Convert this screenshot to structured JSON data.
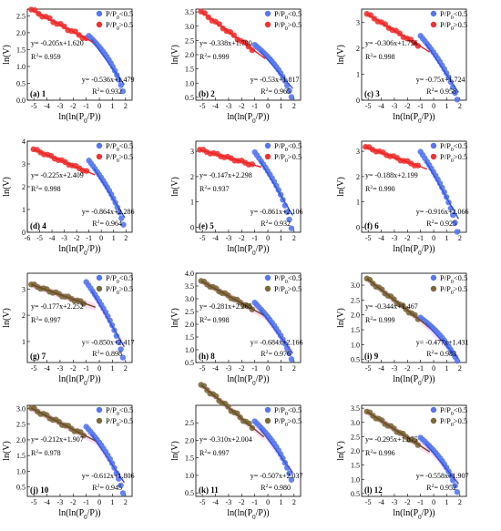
{
  "figure": {
    "type": "scatter"
  },
  "colors": {
    "low": "#5577ee",
    "high_red": "#ee3333",
    "high_brown": "#7a6a3a",
    "fit_red": "#ee2222",
    "fit_blue": "#3355dd",
    "fit_brown": "#6b4a2a",
    "band_pink": "#ff99dd",
    "band_green": "#33bb55"
  },
  "chart_data": [
    {
      "type": "scatter",
      "label": "(a) 1",
      "xlabel": "ln(ln(P0/P))",
      "ylabel": "ln(V)",
      "xlim": [
        -5.5,
        2.5
      ],
      "ylim": [
        0,
        2.7
      ],
      "xticks": [
        -5,
        -4,
        -3,
        -2,
        -1,
        0,
        1,
        2
      ],
      "yticks": [
        0.0,
        0.5,
        1.0,
        1.5,
        2.0,
        2.5
      ],
      "ytick_labels": [
        "0.0",
        "0.5",
        "1.0",
        "1.5",
        "2.0",
        "2.5"
      ],
      "legend": [
        "P/P0<0.5",
        "P/P0>0.5"
      ],
      "high_color": "high_red",
      "fit_high": {
        "equation": "y= -0.205x+1.620",
        "r2": "0.959",
        "slope": -0.205,
        "intercept": 1.62,
        "x_range": [
          -5.2,
          -0.3
        ]
      },
      "fit_low": {
        "equation": "y= -0.536x+1.479",
        "r2": "0.932",
        "slope": -0.536,
        "intercept": 1.479,
        "x_range": [
          -0.6,
          1.9
        ]
      },
      "high_points": {
        "x_range": [
          -5.2,
          -1.0
        ],
        "n": 16
      },
      "low_points": {
        "x_range": [
          -0.8,
          1.8
        ],
        "n": 18,
        "dip": 0.25
      }
    },
    {
      "type": "scatter",
      "label": "(b) 2",
      "xlabel": "ln(ln(P0/P))",
      "ylabel": "ln(V)",
      "xlim": [
        -5.5,
        2.5
      ],
      "ylim": [
        0.4,
        3.6
      ],
      "xticks": [
        -5,
        -4,
        -3,
        -2,
        -1,
        0,
        1,
        2
      ],
      "yticks": [
        0.5,
        1.0,
        1.5,
        2.0,
        2.5,
        3.0,
        3.5
      ],
      "ytick_labels": [
        "0.5",
        "1.0",
        "1.5",
        "2.0",
        "2.5",
        "3.0",
        "3.5"
      ],
      "legend": [
        "P/P0<0.5",
        "P/P0>0.5"
      ],
      "high_color": "high_red",
      "fit_high": {
        "equation": "y= -0.338x+1.790",
        "r2": "0.999",
        "slope": -0.338,
        "intercept": 1.79,
        "x_range": [
          -5.1,
          -0.2
        ]
      },
      "fit_low": {
        "equation": "y= -0.53x+1.817",
        "r2": "0.965",
        "slope": -0.53,
        "intercept": 1.817,
        "x_range": [
          -0.6,
          1.9
        ]
      },
      "high_points": {
        "x_range": [
          -5.1,
          -1.2
        ],
        "n": 15
      },
      "low_points": {
        "x_range": [
          -1.0,
          1.8
        ],
        "n": 18,
        "dip": 0.35
      }
    },
    {
      "type": "scatter",
      "label": "(c) 3",
      "xlabel": "ln(ln(P0/P))",
      "ylabel": "ln(V)",
      "xlim": [
        -5.5,
        2.5
      ],
      "ylim": [
        0,
        3.5
      ],
      "xticks": [
        -5,
        -4,
        -3,
        -2,
        -1,
        0,
        1,
        2
      ],
      "yticks": [
        0,
        1,
        2,
        3
      ],
      "ytick_labels": [
        "0",
        "1",
        "2",
        "3"
      ],
      "legend": [
        "P/P0<0.5",
        "P/P0>0.5"
      ],
      "high_color": "high_red",
      "fit_high": {
        "equation": "y= -0.306x+1.756",
        "r2": "0.998",
        "slope": -0.306,
        "intercept": 1.756,
        "x_range": [
          -5.1,
          -0.3
        ]
      },
      "fit_low": {
        "equation": "y= -0.75x+1.724",
        "r2": "0.958",
        "slope": -0.75,
        "intercept": 1.724,
        "x_range": [
          -0.6,
          1.9
        ]
      },
      "high_points": {
        "x_range": [
          -5.1,
          -1.2
        ],
        "n": 15
      },
      "low_points": {
        "x_range": [
          -1.0,
          1.8
        ],
        "n": 18,
        "dip": 0.35
      }
    },
    {
      "type": "scatter",
      "label": "(d) 4",
      "xlabel": "ln(ln(P0/P))",
      "ylabel": "ln(V)",
      "xlim": [
        -6,
        2.5
      ],
      "ylim": [
        0,
        4
      ],
      "xticks": [
        -6,
        -5,
        -4,
        -3,
        -2,
        -1,
        0,
        1,
        2
      ],
      "yticks": [
        0,
        1,
        2,
        3,
        4
      ],
      "ytick_labels": [
        "0",
        "1",
        "2",
        "3",
        "4"
      ],
      "legend": [
        "P/P0<0.5",
        "P/P0>0.5"
      ],
      "high_color": "high_red",
      "fit_high": {
        "equation": "y= -0.225x+2.409",
        "r2": "0.998",
        "slope": -0.225,
        "intercept": 2.409,
        "x_range": [
          -5.5,
          -0.5
        ]
      },
      "fit_low": {
        "equation": "y= -0.864x+2.286",
        "r2": "0.964",
        "slope": -0.864,
        "intercept": 2.286,
        "x_range": [
          -0.6,
          1.9
        ]
      },
      "high_points": {
        "x_range": [
          -5.5,
          -1.2
        ],
        "n": 16
      },
      "low_points": {
        "x_range": [
          -1.0,
          1.8
        ],
        "n": 18,
        "dip": 0.4
      }
    },
    {
      "type": "scatter",
      "label": "(e) 5",
      "xlabel": "ln(ln(P0/P))",
      "ylabel": "ln(V)",
      "xlim": [
        -5.5,
        2.5
      ],
      "ylim": [
        -0.2,
        3.4
      ],
      "xticks": [
        -5,
        -4,
        -3,
        -2,
        -1,
        0,
        1,
        2
      ],
      "yticks": [
        0,
        1,
        2,
        3
      ],
      "ytick_labels": [
        "0",
        "1",
        "2",
        "3"
      ],
      "legend": [
        "P/P0<0.5",
        "P/P0>0.5"
      ],
      "high_color": "high_red",
      "fit_high": {
        "equation": "y= -0.147x+2.298",
        "r2": "0.937",
        "slope": -0.147,
        "intercept": 2.298,
        "x_range": [
          -5.2,
          -0.5
        ]
      },
      "fit_low": {
        "equation": "y= -0.861x+2.106",
        "r2": "0.932",
        "slope": -0.861,
        "intercept": 2.106,
        "x_range": [
          -0.6,
          1.9
        ]
      },
      "high_points": {
        "x_range": [
          -5.2,
          -1.2
        ],
        "n": 16
      },
      "low_points": {
        "x_range": [
          -1.0,
          1.8
        ],
        "n": 18,
        "dip": 0.6
      }
    },
    {
      "type": "scatter",
      "label": "(f) 6",
      "xlabel": "ln(ln(P0/P))",
      "ylabel": "ln(V)",
      "xlim": [
        -5.5,
        2.5
      ],
      "ylim": [
        -0.2,
        3.4
      ],
      "xticks": [
        -5,
        -4,
        -3,
        -2,
        -1,
        0,
        1,
        2
      ],
      "yticks": [
        0,
        1,
        2,
        3
      ],
      "ytick_labels": [
        "0",
        "1",
        "2",
        "3"
      ],
      "legend": [
        "P/P0<0.5",
        "P/P0>0.5"
      ],
      "high_color": "high_red",
      "fit_high": {
        "equation": "y= -0.188x+2.199",
        "r2": "0.990",
        "slope": -0.188,
        "intercept": 2.199,
        "x_range": [
          -5.2,
          -0.5
        ]
      },
      "fit_low": {
        "equation": "y= -0.916x+2.066",
        "r2": "0.925",
        "slope": -0.916,
        "intercept": 2.066,
        "x_range": [
          -0.6,
          1.9
        ]
      },
      "high_points": {
        "x_range": [
          -5.2,
          -1.2
        ],
        "n": 16
      },
      "low_points": {
        "x_range": [
          -1.0,
          1.8
        ],
        "n": 18,
        "dip": 0.6
      }
    },
    {
      "type": "scatter",
      "label": "(g) 7",
      "xlabel": "ln(ln(P0/P))",
      "ylabel": "ln(V)",
      "xlim": [
        -5.5,
        2.5
      ],
      "ylim": [
        0.2,
        3.6
      ],
      "xticks": [
        -5,
        -4,
        -3,
        -2,
        -1,
        0,
        1,
        2
      ],
      "yticks": [
        1,
        2,
        3
      ],
      "ytick_labels": [
        "1",
        "2",
        "3"
      ],
      "legend": [
        "P/P0<0.5",
        "P/P0>0.5"
      ],
      "high_color": "high_brown",
      "fit_high": {
        "equation": "y= -0.177x+2.252",
        "r2": "0.997",
        "slope": -0.177,
        "intercept": 2.252,
        "x_range": [
          -5.2,
          -0.3
        ]
      },
      "fit_low": {
        "equation": "y= -0.850x+2.417",
        "r2": "0.898",
        "slope": -0.85,
        "intercept": 2.417,
        "x_range": [
          -0.6,
          1.9
        ]
      },
      "high_points": {
        "x_range": [
          -5.2,
          -1.2
        ],
        "n": 18
      },
      "low_points": {
        "x_range": [
          -1.0,
          1.8
        ],
        "n": 18,
        "dip": 0.5
      }
    },
    {
      "type": "scatter",
      "label": "(h) 8",
      "xlabel": "ln(ln(P0/P))",
      "ylabel": "ln(V)",
      "xlim": [
        -5.5,
        2.5
      ],
      "ylim": [
        0.5,
        4.0
      ],
      "xticks": [
        -5,
        -4,
        -3,
        -2,
        -1,
        0,
        1,
        2
      ],
      "yticks": [
        0.5,
        1.0,
        1.5,
        2.0,
        2.5,
        3.0,
        3.5,
        4.0
      ],
      "ytick_labels": [
        "0.5",
        "1.0",
        "1.5",
        "2.0",
        "2.5",
        "3.0",
        "3.5",
        "4.0"
      ],
      "legend": [
        "P/P0<0.5",
        "P/P0>0.5"
      ],
      "high_color": "high_brown",
      "fit_high": {
        "equation": "y= -0.281x+2.265",
        "r2": "0.998",
        "slope": -0.281,
        "intercept": 2.265,
        "x_range": [
          -5.1,
          -0.3
        ]
      },
      "fit_low": {
        "equation": "y= -0.684x+2.166",
        "r2": "0.976",
        "slope": -0.684,
        "intercept": 2.166,
        "x_range": [
          -0.6,
          1.9
        ]
      },
      "high_points": {
        "x_range": [
          -5.1,
          -1.2
        ],
        "n": 18
      },
      "low_points": {
        "x_range": [
          -1.0,
          1.8
        ],
        "n": 18,
        "dip": 0.3
      }
    },
    {
      "type": "scatter",
      "label": "(i) 9",
      "xlabel": "ln(ln(P0/P))",
      "ylabel": "ln(V)",
      "xlim": [
        -5.5,
        2.5
      ],
      "ylim": [
        0.4,
        3.4
      ],
      "xticks": [
        -5,
        -4,
        -3,
        -2,
        -1,
        0,
        1,
        2
      ],
      "yticks": [
        0.5,
        1.0,
        1.5,
        2.0,
        2.5,
        3.0
      ],
      "ytick_labels": [
        "0.5",
        "1.0",
        "1.5",
        "2.0",
        "2.5",
        "3.0"
      ],
      "legend": [
        "P/P0<0.5",
        "P/P0>0.5"
      ],
      "high_color": "high_brown",
      "fit_high": {
        "equation": "y= -0.344x+1.467",
        "r2": "0.999",
        "slope": -0.344,
        "intercept": 1.467,
        "x_range": [
          -5.1,
          -0.3
        ]
      },
      "fit_low": {
        "equation": "y= -0.477x+1.431",
        "r2": "0.983",
        "slope": -0.477,
        "intercept": 1.431,
        "x_range": [
          -0.6,
          1.9
        ]
      },
      "high_points": {
        "x_range": [
          -5.1,
          -1.2
        ],
        "n": 18
      },
      "low_points": {
        "x_range": [
          -1.0,
          1.8
        ],
        "n": 18,
        "dip": 0.12
      }
    },
    {
      "type": "scatter",
      "label": "(j) 10",
      "xlabel": "ln(ln(P0/P))",
      "ylabel": "ln(V)",
      "xlim": [
        -5.5,
        2.5
      ],
      "ylim": [
        0.2,
        3.1
      ],
      "xticks": [
        -5,
        -4,
        -3,
        -2,
        -1,
        0,
        1,
        2
      ],
      "yticks": [
        0.5,
        1.0,
        1.5,
        2.0,
        2.5,
        3.0
      ],
      "ytick_labels": [
        "0.5",
        "1.0",
        "1.5",
        "2.0",
        "2.5",
        "3.0"
      ],
      "legend": [
        "P/P0<0.5",
        "P/P0>0.5"
      ],
      "high_color": "high_brown",
      "fit_high": {
        "equation": "y= -0.212x+1.907",
        "r2": "0.978",
        "slope": -0.212,
        "intercept": 1.907,
        "x_range": [
          -5.2,
          -0.3
        ]
      },
      "fit_low": {
        "equation": "y= -0.612x+1.806",
        "r2": "0.945",
        "slope": -0.612,
        "intercept": 1.806,
        "x_range": [
          -0.6,
          1.9
        ]
      },
      "high_points": {
        "x_range": [
          -5.2,
          -1.2
        ],
        "n": 18
      },
      "low_points": {
        "x_range": [
          -1.0,
          1.8
        ],
        "n": 18,
        "dip": 0.4
      }
    },
    {
      "type": "scatter",
      "label": "(k) 11",
      "xlabel": "ln(ln(P0/P))",
      "ylabel": "ln(V)",
      "xlim": [
        -5.5,
        2.5
      ],
      "ylim": [
        0.4,
        3.0
      ],
      "xticks": [
        -5,
        -4,
        -3,
        -2,
        -1,
        0,
        1,
        2
      ],
      "yticks": [
        0.5,
        1.0,
        1.5,
        2.0,
        2.5
      ],
      "ytick_labels": [
        "0.5",
        "1.0",
        "1.5",
        "2.0",
        "2.5"
      ],
      "legend": [
        "P/P0<0.5",
        "P/P0>0.5"
      ],
      "high_color": "high_brown",
      "fit_high": {
        "equation": "y= -0.310x+2.004",
        "r2": "0.997",
        "slope": -0.31,
        "intercept": 2.004,
        "x_range": [
          -5.1,
          -0.3
        ]
      },
      "fit_low": {
        "equation": "y= -0.507x+2.037",
        "r2": "0.980",
        "slope": -0.507,
        "intercept": 2.037,
        "x_range": [
          -0.6,
          1.9
        ]
      },
      "high_points": {
        "x_range": [
          -5.1,
          -1.2
        ],
        "n": 18
      },
      "low_points": {
        "x_range": [
          -1.0,
          1.8
        ],
        "n": 18,
        "dip": 0.25
      }
    },
    {
      "type": "scatter",
      "label": "(l) 12",
      "xlabel": "ln(ln(P0/P))",
      "ylabel": "ln(V)",
      "xlim": [
        -5.5,
        2.5
      ],
      "ylim": [
        0.4,
        3.6
      ],
      "xticks": [
        -5,
        -4,
        -3,
        -2,
        -1,
        0,
        1,
        2
      ],
      "yticks": [
        0.5,
        1.0,
        1.5,
        2.0,
        2.5,
        3.0,
        3.5
      ],
      "ytick_labels": [
        "0.5",
        "1.0",
        "1.5",
        "2.0",
        "2.5",
        "3.0",
        "3.5"
      ],
      "legend": [
        "P/P0<0.5",
        "P/P0>0.5"
      ],
      "high_color": "high_brown",
      "fit_high": {
        "equation": "y= -0.295x+1.875",
        "r2": "0.996",
        "slope": -0.295,
        "intercept": 1.875,
        "x_range": [
          -5.1,
          -0.3
        ]
      },
      "fit_low": {
        "equation": "y= -0.558x+1.907",
        "r2": "0.952",
        "slope": -0.558,
        "intercept": 1.907,
        "x_range": [
          -0.6,
          1.9
        ]
      },
      "high_points": {
        "x_range": [
          -5.1,
          -1.2
        ],
        "n": 18
      },
      "low_points": {
        "x_range": [
          -1.0,
          1.8
        ],
        "n": 18,
        "dip": 0.35
      }
    }
  ]
}
